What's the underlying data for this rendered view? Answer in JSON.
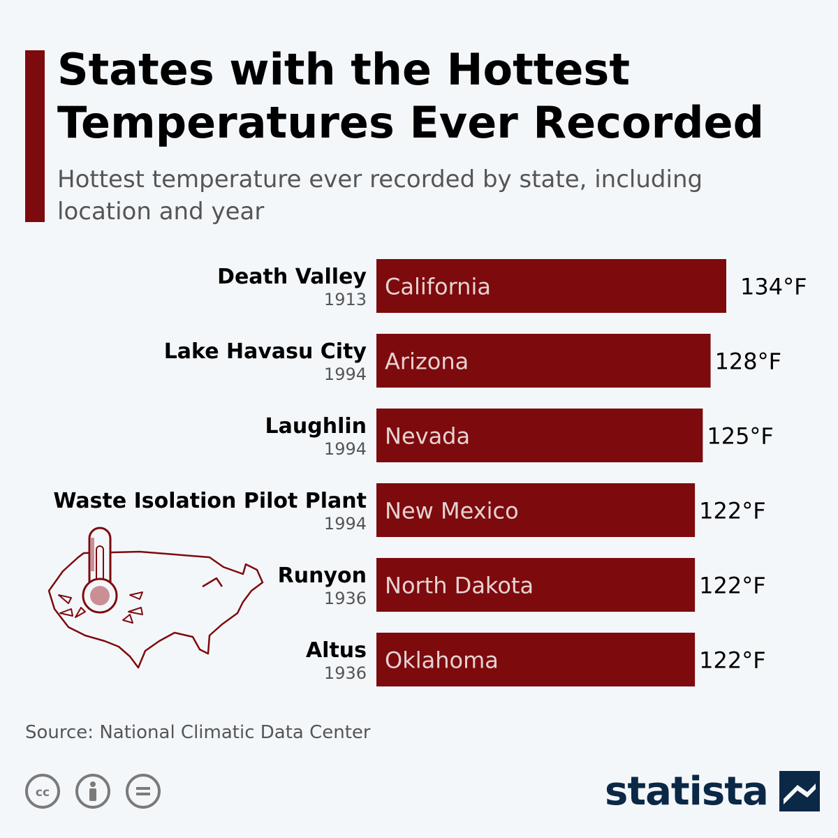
{
  "title": "States with the Hottest Temperatures Ever Recorded",
  "subtitle": "Hottest temperature ever recorded by state, including location and year",
  "source": "Source: National Climatic Data Center",
  "brand": "statista",
  "colors": {
    "bar": "#7d0a0d",
    "bar_label": "#e6d3d3",
    "accent": "#7d0a0d",
    "brand": "#0b2846"
  },
  "icons": [
    "thermometer-map-icon",
    "cc-icon",
    "attribution-icon",
    "no-derivatives-icon",
    "statista-logo-icon"
  ],
  "chart_data": {
    "type": "bar",
    "orientation": "horizontal",
    "unit": "°F",
    "xlim": [
      0,
      134
    ],
    "categories": [
      "California",
      "Arizona",
      "Nevada",
      "New Mexico",
      "North Dakota",
      "Oklahoma"
    ],
    "values": [
      134,
      128,
      125,
      122,
      122,
      122
    ],
    "value_labels": [
      "134°F",
      "128°F",
      "125°F",
      "122°F",
      "122°F",
      "122°F"
    ],
    "locations": [
      "Death Valley",
      "Lake Havasu City",
      "Laughlin",
      "Waste Isolation Pilot Plant",
      "Runyon",
      "Altus"
    ],
    "years": [
      "1913",
      "1994",
      "1994",
      "1994",
      "1936",
      "1936"
    ]
  }
}
